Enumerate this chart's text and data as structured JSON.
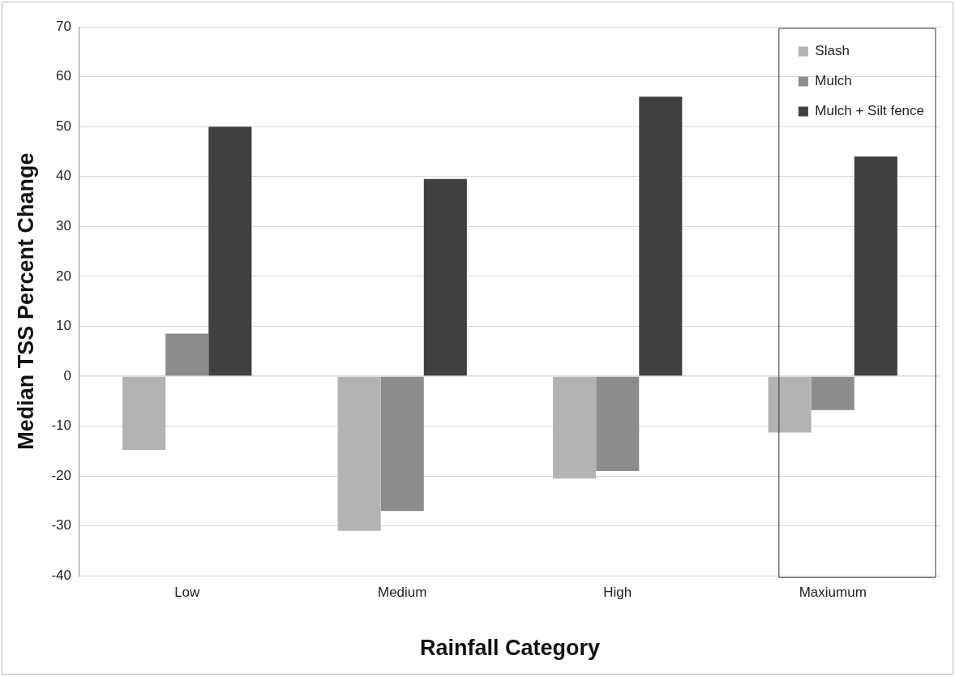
{
  "chart_data": {
    "type": "bar",
    "xlabel": "Rainfall Category",
    "ylabel": "Median TSS Percent Change",
    "categories": [
      "Low",
      "Medium",
      "High",
      "Maxiumum"
    ],
    "series": [
      {
        "name": "Slash",
        "color": "#b3b3b3",
        "values": [
          -14.8,
          -31,
          -20.5,
          -11.3
        ]
      },
      {
        "name": "Mulch",
        "color": "#8c8c8c",
        "values": [
          8.5,
          -27,
          -19,
          -6.8
        ]
      },
      {
        "name": "Mulch + Silt fence",
        "color": "#404040",
        "values": [
          50,
          39.5,
          56,
          44
        ]
      }
    ],
    "ylim": [
      -40,
      70
    ],
    "yticks": [
      -40,
      -30,
      -20,
      -10,
      0,
      10,
      20,
      30,
      40,
      50,
      60,
      70
    ],
    "grid": "y",
    "legend": "top right"
  }
}
